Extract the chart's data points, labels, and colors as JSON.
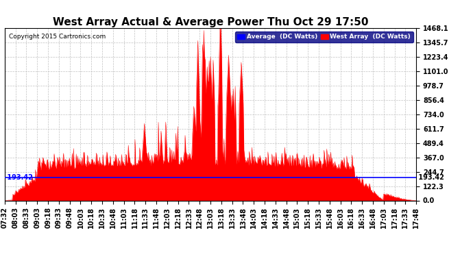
{
  "title": "West Array Actual & Average Power Thu Oct 29 17:50",
  "copyright": "Copyright 2015 Cartronics.com",
  "legend_labels": [
    "Average  (DC Watts)",
    "West Array  (DC Watts)"
  ],
  "legend_colors": [
    "#0000ff",
    "#ff0000"
  ],
  "avg_value": 193.42,
  "y_ticks": [
    0.0,
    122.3,
    244.7,
    367.0,
    489.4,
    611.7,
    734.0,
    856.4,
    978.7,
    1101.0,
    1223.4,
    1345.7,
    1468.1
  ],
  "y_max": 1468.1,
  "y_min": 0.0,
  "x_tick_labels": [
    "07:32",
    "08:03",
    "08:33",
    "09:03",
    "09:18",
    "09:33",
    "09:48",
    "10:03",
    "10:18",
    "10:33",
    "10:48",
    "11:03",
    "11:18",
    "11:33",
    "11:48",
    "12:03",
    "12:18",
    "12:33",
    "12:48",
    "13:03",
    "13:18",
    "13:33",
    "13:48",
    "14:03",
    "14:18",
    "14:33",
    "14:48",
    "15:03",
    "15:18",
    "15:33",
    "15:48",
    "16:03",
    "16:18",
    "16:33",
    "16:48",
    "17:03",
    "17:18",
    "17:33",
    "17:48"
  ],
  "background_color": "#ffffff",
  "plot_bg_color": "#ffffff",
  "grid_color": "#c0c0c0",
  "red_color": "#ff0000",
  "blue_color": "#0000ff",
  "title_fontsize": 11,
  "tick_fontsize": 7,
  "avg_label_fontsize": 7
}
